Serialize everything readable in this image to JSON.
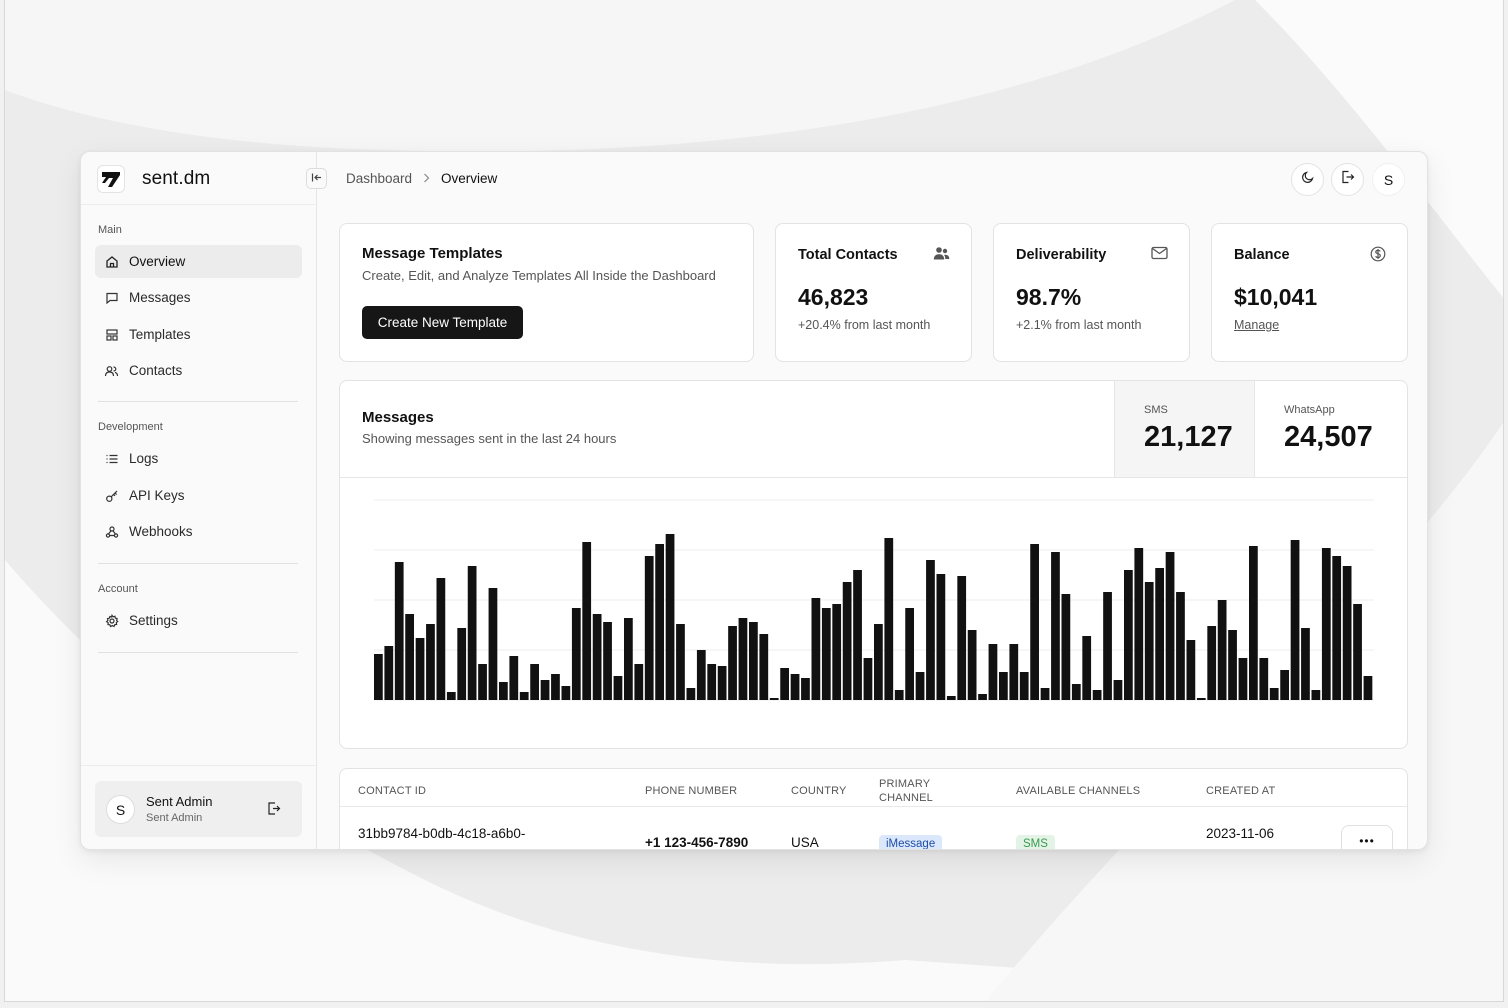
{
  "app": {
    "name": "sent.dm"
  },
  "sidebar": {
    "groups": [
      {
        "label": "Main",
        "items": [
          {
            "label": "Overview",
            "icon": "home-icon",
            "active": true
          },
          {
            "label": "Messages",
            "icon": "message-square-icon"
          },
          {
            "label": "Templates",
            "icon": "layout-template-icon"
          },
          {
            "label": "Contacts",
            "icon": "users-icon"
          }
        ]
      },
      {
        "label": "Development",
        "items": [
          {
            "label": "Logs",
            "icon": "list-icon"
          },
          {
            "label": "API Keys",
            "icon": "key-icon"
          },
          {
            "label": "Webhooks",
            "icon": "webhook-icon"
          }
        ]
      },
      {
        "label": "Account",
        "items": [
          {
            "label": "Settings",
            "icon": "gear-icon"
          }
        ]
      }
    ],
    "user": {
      "initial": "S",
      "name": "Sent Admin",
      "role": "Sent Admin"
    }
  },
  "header": {
    "breadcrumb": [
      "Dashboard",
      "Overview"
    ],
    "avatar_initial": "S"
  },
  "templates_card": {
    "title": "Message Templates",
    "description": "Create, Edit, and Analyze Templates All Inside the Dashboard",
    "button_label": "Create New Template"
  },
  "stats": [
    {
      "title": "Total Contacts",
      "value": "46,823",
      "sub": "+20.4% from last month",
      "icon": "users-icon"
    },
    {
      "title": "Deliverability",
      "value": "98.7%",
      "sub": "+2.1% from last month",
      "icon": "mail-icon"
    },
    {
      "title": "Balance",
      "value": "$10,041",
      "sub": "Manage",
      "icon": "dollar-circle-icon"
    }
  ],
  "messages_card": {
    "title": "Messages",
    "description": "Showing messages sent in the last 24 hours",
    "totals": [
      {
        "label": "SMS",
        "value": "21,127",
        "selected": true
      },
      {
        "label": "WhatsApp",
        "value": "24,507",
        "selected": false
      }
    ]
  },
  "chart_data": {
    "type": "bar",
    "title": "",
    "xlabel": "",
    "ylabel": "",
    "ylim": [
      0,
      100
    ],
    "grid": true,
    "bar_color": "#111111",
    "values": [
      23,
      27,
      69,
      43,
      31,
      38,
      61,
      4,
      36,
      67,
      18,
      56,
      9,
      22,
      4,
      18,
      10,
      13,
      7,
      46,
      79,
      43,
      39,
      12,
      41,
      18,
      72,
      78,
      83,
      38,
      6,
      25,
      18,
      17,
      37,
      41,
      39,
      33,
      1,
      16,
      13,
      11,
      51,
      46,
      48,
      59,
      65,
      21,
      38,
      81,
      5,
      46,
      14,
      70,
      63,
      2,
      62,
      35,
      3,
      28,
      14,
      28,
      14,
      78,
      6,
      74,
      53,
      8,
      32,
      5,
      54,
      10,
      65,
      76,
      59,
      66,
      74,
      54,
      30,
      1,
      37,
      50,
      35,
      21,
      77,
      21,
      6,
      15,
      80,
      36,
      5,
      76,
      72,
      67,
      48,
      12
    ]
  },
  "table": {
    "headers": [
      "CONTACT ID",
      "PHONE NUMBER",
      "COUNTRY",
      "PRIMARY CHANNEL",
      "AVAILABLE CHANNELS",
      "CREATED AT"
    ],
    "rows": [
      {
        "contact_id": "31bb9784-b0db-4c18-a6b0-",
        "phone": "+1 123-456-7890",
        "country": "USA",
        "primary_channel": "iMessage",
        "available_channels": "SMS",
        "created_at": "2023-11-06",
        "more": "•••"
      }
    ]
  },
  "colors": {
    "accent": "#161616",
    "badge_blue_bg": "#dbe7fb",
    "badge_green_bg": "#e3f4e6"
  }
}
